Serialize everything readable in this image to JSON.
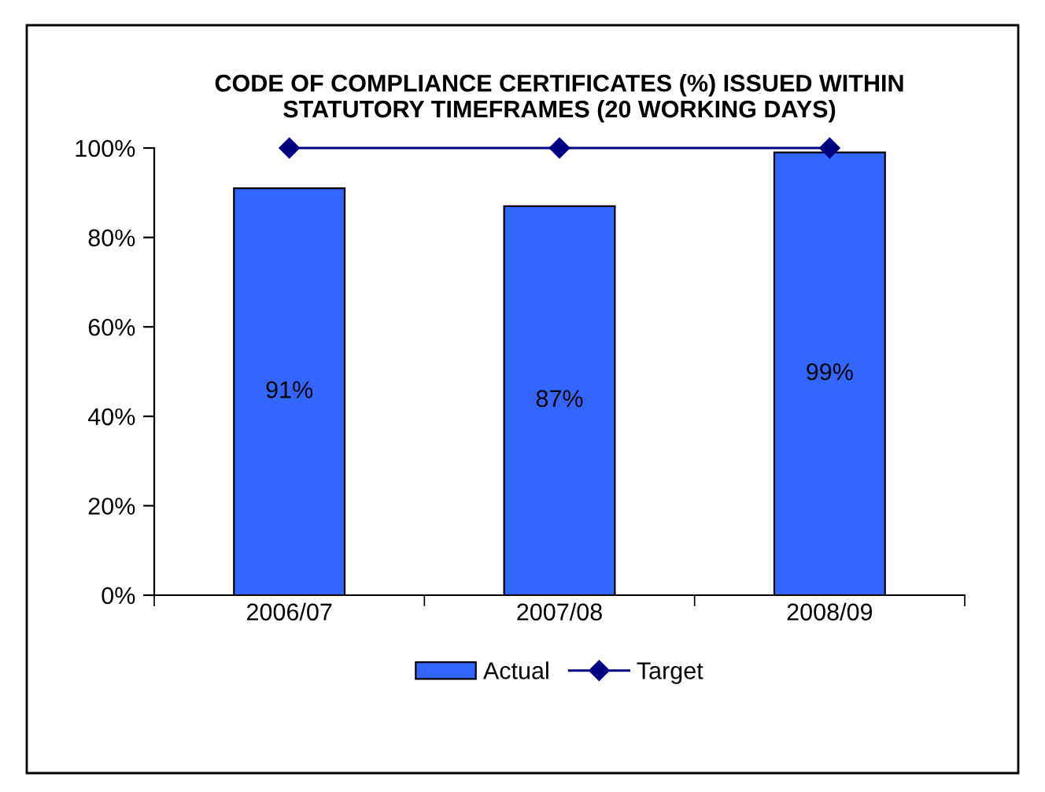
{
  "chart_data": {
    "type": "bar",
    "title": "CODE OF COMPLIANCE CERTIFICATES (%) ISSUED WITHIN\nSTATUTORY TIMEFRAMES (20 WORKING DAYS)",
    "categories": [
      "2006/07",
      "2007/08",
      "2008/09"
    ],
    "series": [
      {
        "name": "Actual",
        "color": "#3366ff",
        "values": [
          91,
          87,
          99
        ],
        "value_labels": [
          "91%",
          "87%",
          "99%"
        ]
      },
      {
        "name": "Target",
        "type": "line",
        "color": "#000080",
        "values": [
          100,
          100,
          100
        ],
        "marker": "diamond",
        "line_style": "solid"
      }
    ],
    "ylim": [
      0,
      100
    ],
    "yticks": [
      {
        "value": 0,
        "label": "0%"
      },
      {
        "value": 20,
        "label": "20%"
      },
      {
        "value": 40,
        "label": "40%"
      },
      {
        "value": 60,
        "label": "60%"
      },
      {
        "value": 80,
        "label": "80%"
      },
      {
        "value": 100,
        "label": "100%"
      }
    ],
    "grid": false,
    "legend": "bottom"
  }
}
